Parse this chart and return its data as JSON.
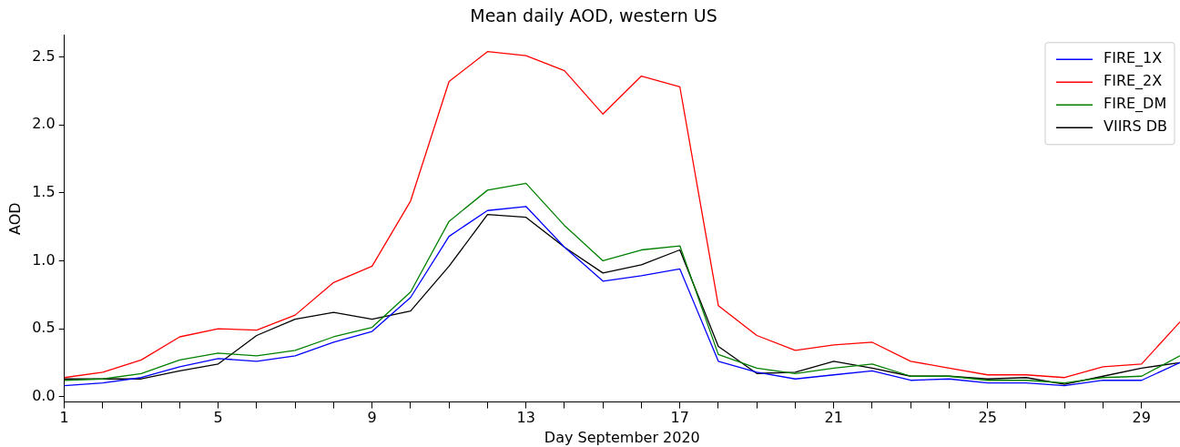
{
  "chart_data": {
    "type": "line",
    "title": "Mean daily AOD, western US",
    "xlabel": "Day September 2020",
    "ylabel": "AOD",
    "x": [
      1,
      2,
      3,
      4,
      5,
      6,
      7,
      8,
      9,
      10,
      11,
      12,
      13,
      14,
      15,
      16,
      17,
      18,
      19,
      20,
      21,
      22,
      23,
      24,
      25,
      26,
      27,
      28,
      29,
      30
    ],
    "xlim": [
      1,
      30
    ],
    "ylim": [
      -0.04,
      2.66
    ],
    "xticks": [
      1,
      {
        "value": 2,
        "label": null
      },
      {
        "value": 3,
        "label": null
      },
      {
        "value": 4,
        "label": null
      },
      5,
      {
        "value": 6,
        "label": null
      },
      {
        "value": 7,
        "label": null
      },
      {
        "value": 8,
        "label": null
      },
      9,
      {
        "value": 10,
        "label": null
      },
      {
        "value": 11,
        "label": null
      },
      {
        "value": 12,
        "label": null
      },
      13,
      {
        "value": 14,
        "label": null
      },
      {
        "value": 15,
        "label": null
      },
      {
        "value": 16,
        "label": null
      },
      17,
      {
        "value": 18,
        "label": null
      },
      {
        "value": 19,
        "label": null
      },
      {
        "value": 20,
        "label": null
      },
      21,
      {
        "value": 22,
        "label": null
      },
      {
        "value": 23,
        "label": null
      },
      {
        "value": 24,
        "label": null
      },
      25,
      {
        "value": 26,
        "label": null
      },
      {
        "value": 27,
        "label": null
      },
      {
        "value": 28,
        "label": null
      },
      29
    ],
    "yticks": [
      {
        "value": 0,
        "label": "0.0"
      },
      {
        "value": 0.5,
        "label": "0.5"
      },
      {
        "value": 1,
        "label": "1.0"
      },
      {
        "value": 1.5,
        "label": "1.5"
      },
      {
        "value": 2,
        "label": "2.0"
      },
      {
        "value": 2.5,
        "label": "2.5"
      }
    ],
    "grid": false,
    "legend": "top right",
    "marker": "none",
    "line_style": "solid",
    "series": [
      {
        "name": "FIRE_1X",
        "color": "#0000ff",
        "values": [
          0.08,
          0.1,
          0.14,
          0.22,
          0.28,
          0.26,
          0.3,
          0.4,
          0.48,
          0.73,
          1.18,
          1.37,
          1.4,
          1.1,
          0.85,
          0.89,
          0.94,
          0.26,
          0.18,
          0.13,
          0.16,
          0.19,
          0.12,
          0.13,
          0.1,
          0.1,
          0.08,
          0.12,
          0.12,
          0.25
        ]
      },
      {
        "name": "FIRE_2X",
        "color": "#ff0000",
        "values": [
          0.14,
          0.18,
          0.27,
          0.44,
          0.5,
          0.49,
          0.6,
          0.84,
          0.96,
          1.44,
          2.32,
          2.54,
          2.51,
          2.4,
          2.08,
          2.36,
          2.28,
          0.67,
          0.45,
          0.34,
          0.38,
          0.4,
          0.26,
          0.21,
          0.16,
          0.16,
          0.14,
          0.22,
          0.24,
          0.55
        ]
      },
      {
        "name": "FIRE_DM",
        "color": "#008000",
        "values": [
          0.12,
          0.13,
          0.17,
          0.27,
          0.32,
          0.3,
          0.34,
          0.44,
          0.51,
          0.77,
          1.29,
          1.52,
          1.57,
          1.26,
          1.0,
          1.08,
          1.11,
          0.31,
          0.21,
          0.17,
          0.21,
          0.24,
          0.15,
          0.15,
          0.12,
          0.12,
          0.1,
          0.14,
          0.15,
          0.3
        ]
      },
      {
        "name": "VIIRS DB",
        "color": "#000000",
        "values": [
          0.13,
          0.13,
          0.13,
          0.19,
          0.24,
          0.45,
          0.57,
          0.62,
          0.57,
          0.63,
          0.96,
          1.34,
          1.32,
          1.1,
          0.91,
          0.97,
          1.08,
          0.37,
          0.17,
          0.18,
          0.26,
          0.21,
          0.15,
          0.15,
          0.13,
          0.14,
          0.09,
          0.15,
          0.21,
          0.25
        ]
      }
    ]
  }
}
